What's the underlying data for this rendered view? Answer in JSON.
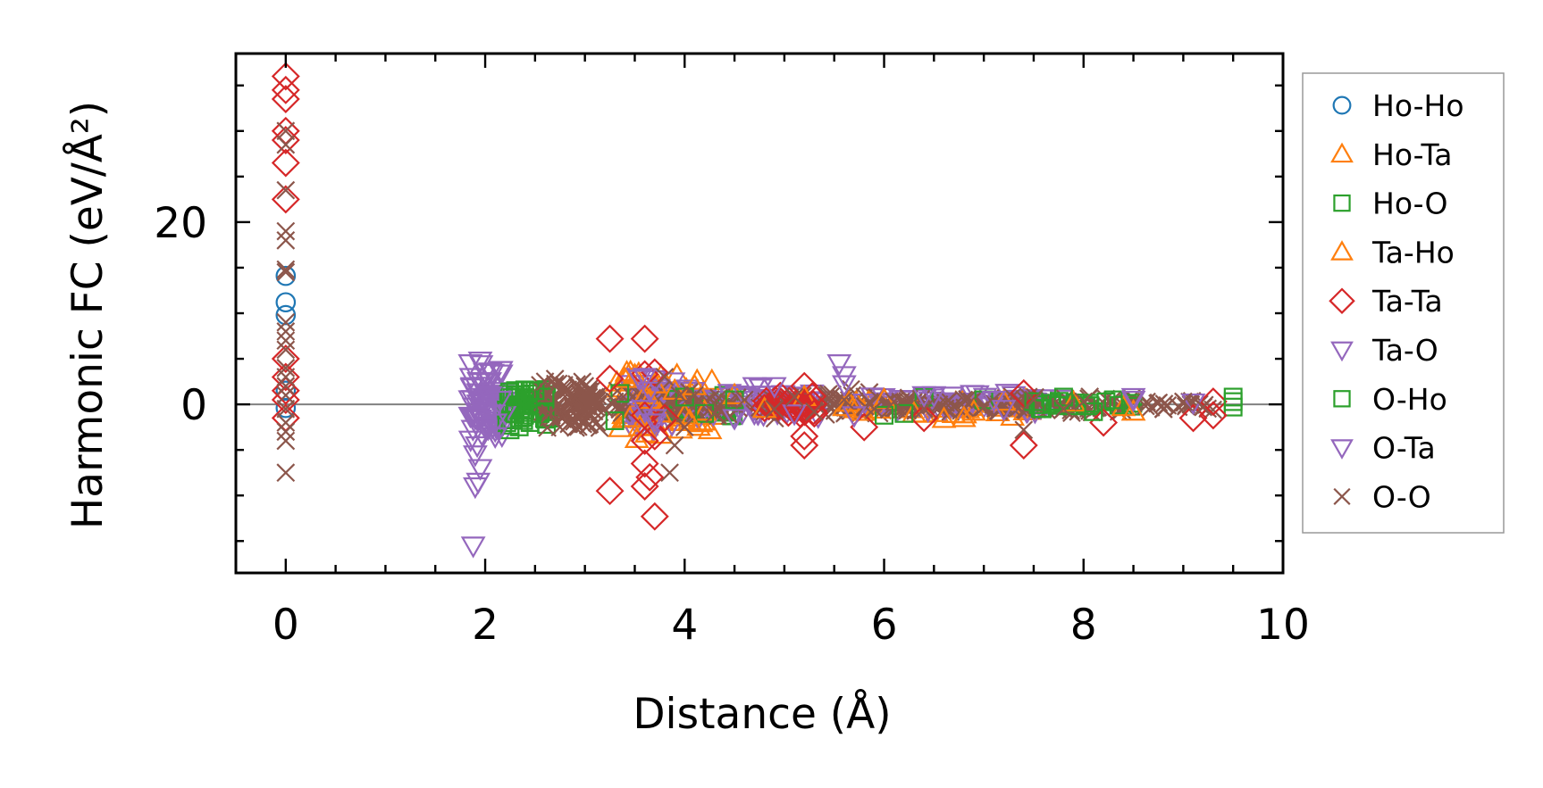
{
  "chart_data": {
    "type": "scatter",
    "xlabel": "Distance (Å)",
    "ylabel": "Harmonic FC (eV/Å²)",
    "xlim": [
      -0.5,
      10
    ],
    "ylim": [
      -18.5,
      38.5
    ],
    "x_ticks": [
      0,
      2,
      4,
      6,
      8,
      10
    ],
    "x_tick_labels": [
      "0",
      "2",
      "4",
      "6",
      "8",
      "10"
    ],
    "y_ticks": [
      0,
      20
    ],
    "y_tick_labels": [
      "0",
      "20"
    ],
    "zero_line": true,
    "grid": false,
    "legend_position": "right, outside plot",
    "series": [
      {
        "name": "Ho-Ho",
        "marker": "circle",
        "color": "#1f77b4",
        "points": [
          [
            0,
            14.1
          ],
          [
            0,
            11.2
          ],
          [
            0,
            9.8
          ],
          [
            0,
            1.5
          ],
          [
            0,
            -0.4
          ]
        ]
      },
      {
        "name": "Ho-Ta",
        "marker": "triangle-up",
        "color": "#ff7f0e",
        "points": [
          [
            3.4,
            2.8
          ],
          [
            3.45,
            -1.5
          ],
          [
            3.5,
            3.2
          ],
          [
            3.55,
            -2.5
          ],
          [
            3.6,
            1.0
          ],
          [
            3.62,
            -3.2
          ],
          [
            3.7,
            2.2
          ],
          [
            3.75,
            -1.0
          ],
          [
            3.9,
            1.5
          ],
          [
            4.0,
            -1.2
          ],
          [
            4.1,
            2.0
          ],
          [
            4.2,
            -0.8
          ],
          [
            4.5,
            1.0
          ],
          [
            4.8,
            -0.5
          ],
          [
            5.2,
            0.8
          ],
          [
            5.6,
            -0.3
          ],
          [
            6.0,
            0.5
          ],
          [
            6.6,
            -1.6
          ],
          [
            6.8,
            -1.5
          ],
          [
            7.2,
            0.3
          ],
          [
            7.9,
            0.2
          ],
          [
            8.4,
            -0.3
          ]
        ]
      },
      {
        "name": "Ho-O",
        "marker": "square",
        "color": "#2ca02c",
        "points": [
          [
            2.25,
            -2.8
          ],
          [
            2.3,
            1.0
          ],
          [
            2.35,
            -1.5
          ],
          [
            2.4,
            0.5
          ],
          [
            2.45,
            -2.0
          ],
          [
            2.5,
            1.5
          ],
          [
            2.55,
            -1.0
          ],
          [
            2.6,
            0.8
          ],
          [
            3.3,
            -1.8
          ],
          [
            3.35,
            1.2
          ],
          [
            4.0,
            0.8
          ],
          [
            4.2,
            -1.0
          ],
          [
            4.5,
            0.5
          ],
          [
            6.0,
            -1.2
          ],
          [
            6.4,
            0.8
          ],
          [
            7.0,
            0.5
          ],
          [
            7.8,
            0.8
          ],
          [
            8.3,
            0.5
          ],
          [
            9.5,
            0.8
          ],
          [
            9.5,
            -0.3
          ]
        ]
      },
      {
        "name": "Ta-Ho",
        "marker": "triangle-up",
        "color": "#ff7f0e",
        "points": [
          [
            3.42,
            3.5
          ],
          [
            3.52,
            -3.8
          ],
          [
            3.65,
            0.5
          ],
          [
            4.05,
            -1.8
          ],
          [
            6.3,
            -1.0
          ],
          [
            6.9,
            -0.8
          ],
          [
            8.5,
            -0.8
          ]
        ]
      },
      {
        "name": "Ta-Ta",
        "marker": "diamond",
        "color": "#d62728",
        "points": [
          [
            0,
            36.0
          ],
          [
            0,
            34.5
          ],
          [
            0,
            33.5
          ],
          [
            0,
            30.0
          ],
          [
            0,
            29.0
          ],
          [
            0,
            26.5
          ],
          [
            0,
            22.5
          ],
          [
            0,
            5.0
          ],
          [
            0,
            3.0
          ],
          [
            0,
            1.5
          ],
          [
            0,
            0.5
          ],
          [
            0,
            -1.5
          ],
          [
            3.25,
            7.2
          ],
          [
            3.25,
            2.8
          ],
          [
            3.25,
            -9.5
          ],
          [
            3.6,
            7.2
          ],
          [
            3.6,
            3.3
          ],
          [
            3.6,
            -1.2
          ],
          [
            3.6,
            -4.0
          ],
          [
            3.6,
            -6.5
          ],
          [
            3.6,
            -9.0
          ],
          [
            3.65,
            -8.0
          ],
          [
            3.7,
            3.5
          ],
          [
            3.7,
            -3.5
          ],
          [
            3.7,
            -12.3
          ],
          [
            3.8,
            -1.5
          ],
          [
            5.2,
            2.0
          ],
          [
            5.2,
            -3.5
          ],
          [
            5.2,
            -4.5
          ],
          [
            5.3,
            -1.0
          ],
          [
            5.8,
            -2.5
          ],
          [
            6.4,
            -1.5
          ],
          [
            7.4,
            1.2
          ],
          [
            7.4,
            -4.5
          ],
          [
            8.2,
            -2.0
          ],
          [
            9.1,
            -1.5
          ],
          [
            9.3,
            -1.2
          ],
          [
            9.3,
            0.3
          ]
        ]
      },
      {
        "name": "Ta-O",
        "marker": "triangle-down",
        "color": "#9467bd",
        "points": [
          [
            1.85,
            4.5
          ],
          [
            1.87,
            2.0
          ],
          [
            1.9,
            -1.5
          ],
          [
            1.92,
            -4.5
          ],
          [
            1.95,
            -7.0
          ],
          [
            1.88,
            -15.5
          ],
          [
            1.9,
            -9.0
          ],
          [
            1.95,
            4.8
          ],
          [
            2.0,
            3.5
          ],
          [
            2.0,
            -2.5
          ],
          [
            2.05,
            1.0
          ],
          [
            2.1,
            -3.5
          ],
          [
            2.15,
            0.5
          ],
          [
            2.2,
            -1.0
          ],
          [
            3.55,
            2.8
          ],
          [
            3.6,
            -0.5
          ],
          [
            3.65,
            1.5
          ],
          [
            3.7,
            -2.0
          ],
          [
            4.7,
            2.0
          ],
          [
            4.5,
            -1.5
          ],
          [
            4.9,
            2.0
          ],
          [
            5.55,
            4.5
          ],
          [
            5.6,
            2.2
          ],
          [
            5.7,
            -1.2
          ],
          [
            6.5,
            1.0
          ],
          [
            7.1,
            0.5
          ],
          [
            8.5,
            0.5
          ],
          [
            9.1,
            0.2
          ]
        ]
      },
      {
        "name": "O-Ho",
        "marker": "square",
        "color": "#2ca02c",
        "points": [
          [
            2.3,
            -1.0
          ],
          [
            2.45,
            1.5
          ],
          [
            2.6,
            -0.8
          ],
          [
            6.2,
            -1.0
          ],
          [
            7.5,
            0.3
          ],
          [
            8.1,
            -0.8
          ],
          [
            9.5,
            0.3
          ]
        ]
      },
      {
        "name": "O-Ta",
        "marker": "triangle-down",
        "color": "#9467bd",
        "points": [
          [
            1.86,
            3.0
          ],
          [
            1.9,
            -5.5
          ],
          [
            1.93,
            -8.5
          ],
          [
            2.02,
            2.5
          ],
          [
            2.1,
            -2.0
          ],
          [
            3.6,
            3.0
          ],
          [
            3.7,
            -1.5
          ],
          [
            4.6,
            1.0
          ],
          [
            5.1,
            -1.0
          ],
          [
            5.6,
            3.2
          ],
          [
            6.4,
            1.0
          ],
          [
            7.2,
            -0.5
          ],
          [
            8.5,
            0.8
          ]
        ]
      },
      {
        "name": "O-O",
        "marker": "x",
        "color": "#8c564b",
        "points": [
          [
            0,
            30.0
          ],
          [
            0,
            28.5
          ],
          [
            0,
            23.5
          ],
          [
            0,
            19.0
          ],
          [
            0,
            18.0
          ],
          [
            0,
            14.8
          ],
          [
            0,
            14.5
          ],
          [
            0,
            9.0
          ],
          [
            0,
            8.0
          ],
          [
            0,
            7.0
          ],
          [
            0,
            6.0
          ],
          [
            0,
            4.0
          ],
          [
            0,
            3.0
          ],
          [
            0,
            2.0
          ],
          [
            0,
            1.0
          ],
          [
            0,
            -0.5
          ],
          [
            0,
            -2.0
          ],
          [
            0,
            -3.0
          ],
          [
            0,
            -4.0
          ],
          [
            0,
            -7.5
          ],
          [
            2.6,
            2.5
          ],
          [
            2.65,
            -1.0
          ],
          [
            2.7,
            2.8
          ],
          [
            2.75,
            -2.5
          ],
          [
            2.8,
            1.8
          ],
          [
            2.85,
            -2.0
          ],
          [
            2.9,
            0.8
          ],
          [
            2.95,
            -1.5
          ],
          [
            3.0,
            2.0
          ],
          [
            3.05,
            -1.0
          ],
          [
            3.1,
            0.8
          ],
          [
            3.2,
            -0.5
          ],
          [
            3.3,
            0.3
          ],
          [
            3.8,
            3.0
          ],
          [
            3.85,
            -7.5
          ],
          [
            3.9,
            -4.5
          ],
          [
            3.95,
            1.0
          ],
          [
            4.0,
            -2.5
          ],
          [
            4.1,
            1.0
          ],
          [
            4.3,
            -1.0
          ],
          [
            4.6,
            0.5
          ],
          [
            4.9,
            -0.5
          ],
          [
            5.1,
            0.8
          ],
          [
            5.3,
            -0.8
          ],
          [
            5.6,
            0.5
          ],
          [
            5.9,
            -0.5
          ],
          [
            6.1,
            0.3
          ],
          [
            6.4,
            -0.5
          ],
          [
            6.8,
            0.5
          ],
          [
            7.0,
            -0.3
          ],
          [
            7.4,
            -2.8
          ],
          [
            7.5,
            0.5
          ],
          [
            7.8,
            -0.5
          ],
          [
            8.0,
            0.3
          ],
          [
            8.8,
            -0.5
          ],
          [
            9.0,
            0.3
          ],
          [
            9.2,
            -0.3
          ]
        ]
      }
    ],
    "bands": [
      {
        "color": "#9467bd",
        "x": [
          1.85,
          2.2
        ],
        "y": [
          -5.5,
          4.5
        ],
        "n": 60
      },
      {
        "color": "#2ca02c",
        "x": [
          2.2,
          2.65
        ],
        "y": [
          -2.5,
          2.0
        ],
        "n": 50
      },
      {
        "color": "#8c564b",
        "x": [
          2.55,
          3.15
        ],
        "y": [
          -3.0,
          3.0
        ],
        "n": 90
      },
      {
        "color": "#ff7f0e",
        "x": [
          3.3,
          4.3
        ],
        "y": [
          -3.8,
          3.8
        ],
        "n": 50
      },
      {
        "color": "#9467bd",
        "x": [
          3.45,
          3.9
        ],
        "y": [
          -3.2,
          3.5
        ],
        "n": 50
      },
      {
        "color": "#2ca02c",
        "x": [
          3.9,
          4.5
        ],
        "y": [
          -1.5,
          1.2
        ],
        "n": 30
      },
      {
        "color": "#9467bd",
        "x": [
          4.0,
          5.4
        ],
        "y": [
          -2.0,
          2.0
        ],
        "n": 60
      },
      {
        "color": "#8c564b",
        "x": [
          3.3,
          6.0
        ],
        "y": [
          -1.8,
          1.8
        ],
        "n": 110
      },
      {
        "color": "#d62728",
        "x": [
          4.8,
          5.3
        ],
        "y": [
          -1.5,
          1.5
        ],
        "n": 25
      },
      {
        "color": "#ff7f0e",
        "x": [
          5.5,
          7.5
        ],
        "y": [
          -1.6,
          0.8
        ],
        "n": 40
      },
      {
        "color": "#9467bd",
        "x": [
          5.8,
          7.8
        ],
        "y": [
          -1.0,
          1.3
        ],
        "n": 60
      },
      {
        "color": "#8c564b",
        "x": [
          5.8,
          8.6
        ],
        "y": [
          -1.0,
          1.0
        ],
        "n": 110
      },
      {
        "color": "#2ca02c",
        "x": [
          7.5,
          8.5
        ],
        "y": [
          -0.8,
          0.8
        ],
        "n": 15
      },
      {
        "color": "#8c564b",
        "x": [
          8.6,
          9.3
        ],
        "y": [
          -0.8,
          0.6
        ],
        "n": 20
      }
    ]
  }
}
